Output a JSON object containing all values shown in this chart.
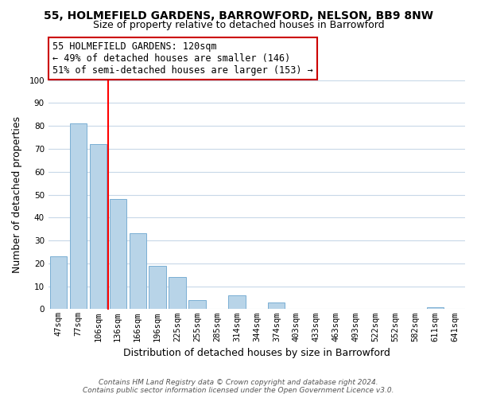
{
  "title": "55, HOLMEFIELD GARDENS, BARROWFORD, NELSON, BB9 8NW",
  "subtitle": "Size of property relative to detached houses in Barrowford",
  "xlabel": "Distribution of detached houses by size in Barrowford",
  "ylabel": "Number of detached properties",
  "bar_labels": [
    "47sqm",
    "77sqm",
    "106sqm",
    "136sqm",
    "166sqm",
    "196sqm",
    "225sqm",
    "255sqm",
    "285sqm",
    "314sqm",
    "344sqm",
    "374sqm",
    "403sqm",
    "433sqm",
    "463sqm",
    "493sqm",
    "522sqm",
    "552sqm",
    "582sqm",
    "611sqm",
    "641sqm"
  ],
  "bar_values": [
    23,
    81,
    72,
    48,
    33,
    19,
    14,
    4,
    0,
    6,
    0,
    3,
    0,
    0,
    0,
    0,
    0,
    0,
    0,
    1,
    0
  ],
  "bar_color": "#b8d4e8",
  "bar_edge_color": "#7bafd4",
  "red_line_index": 2,
  "annotation_text": "55 HOLMEFIELD GARDENS: 120sqm\n← 49% of detached houses are smaller (146)\n51% of semi-detached houses are larger (153) →",
  "annotation_box_color": "#ffffff",
  "annotation_box_edge_color": "#cc0000",
  "ylim": [
    0,
    100
  ],
  "yticks": [
    0,
    10,
    20,
    30,
    40,
    50,
    60,
    70,
    80,
    90,
    100
  ],
  "footnote": "Contains HM Land Registry data © Crown copyright and database right 2024.\nContains public sector information licensed under the Open Government Licence v3.0.",
  "bg_color": "#ffffff",
  "grid_color": "#c8d8e8",
  "title_fontsize": 10,
  "subtitle_fontsize": 9,
  "annotation_fontsize": 8.5,
  "xlabel_fontsize": 9,
  "ylabel_fontsize": 9,
  "tick_fontsize": 7.5,
  "footnote_fontsize": 6.5
}
